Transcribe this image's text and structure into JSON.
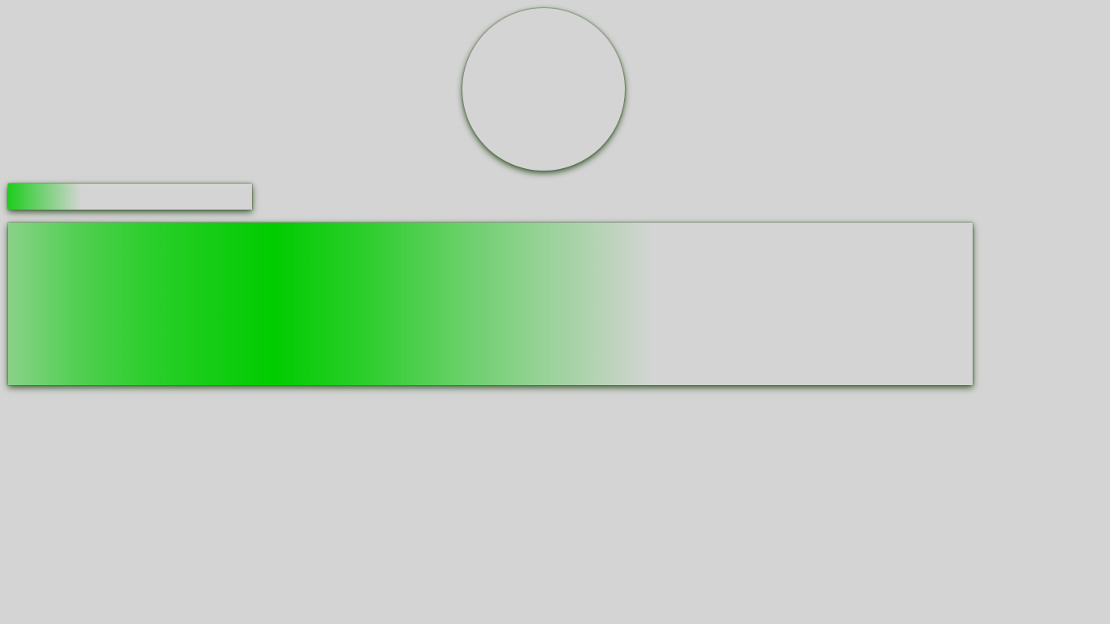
{
  "colors": {
    "background": "#d4d4d4",
    "accent_green": "#00cc00",
    "shadow_green": "#3a5a2e"
  },
  "progress_bar": {
    "fraction": 0.3
  },
  "gradient_panel": {
    "fraction": 0.67
  }
}
